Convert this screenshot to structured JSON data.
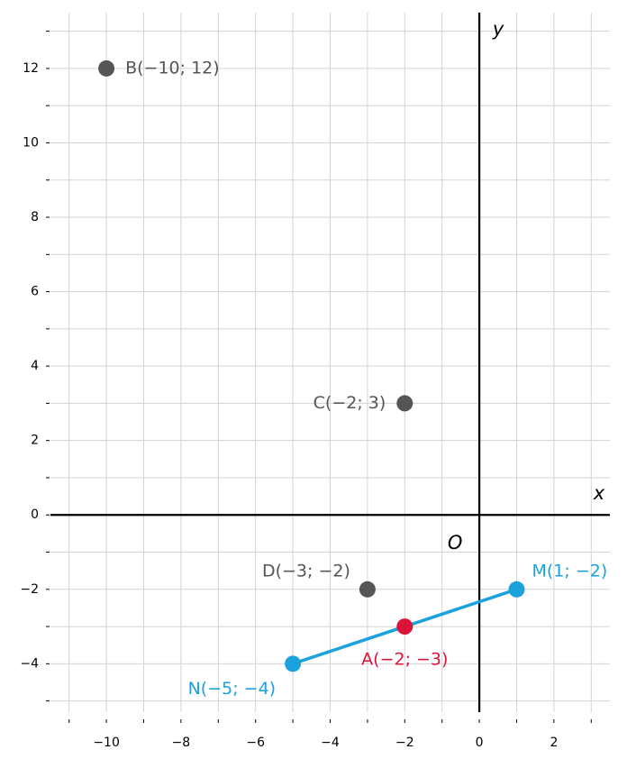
{
  "chart_data": {
    "type": "scatter",
    "x_label": "x",
    "y_label": "y",
    "origin_label": "O",
    "xlim": [
      -11.5,
      3.5
    ],
    "ylim": [
      -5.3,
      13.5
    ],
    "xticks": [
      {
        "value": -10,
        "label": "−10"
      },
      {
        "value": -8,
        "label": "−8"
      },
      {
        "value": -6,
        "label": "−6"
      },
      {
        "value": -4,
        "label": "−4"
      },
      {
        "value": -2,
        "label": "−2"
      },
      0,
      2
    ],
    "yticks": [
      {
        "value": -4,
        "label": "−4"
      },
      {
        "value": -2,
        "label": "−2"
      },
      0,
      2,
      4,
      6,
      8,
      10,
      12
    ],
    "xminorticks": [
      -11,
      -9,
      -7,
      -5,
      -3,
      -1,
      1,
      3
    ],
    "yminorticks": [
      -5,
      -3,
      -1,
      1,
      3,
      5,
      7,
      9,
      11,
      13
    ],
    "grid": true,
    "x": [
      -10,
      -2,
      -3,
      1,
      -5,
      -2
    ],
    "y": [
      12,
      3,
      -2,
      -2,
      -4,
      -3
    ],
    "labels": [
      "B(−10; 12)",
      "C(−2; 3)",
      "D(−3; −2)",
      "M(1; −2)",
      "N(−5; −4)",
      "A(−2; −3)"
    ],
    "colors": [
      "#555555",
      "#555555",
      "#555555",
      "#1ba1dc",
      "#1ba1dc",
      "#dc143c"
    ],
    "segment": {
      "x": [
        -5,
        1
      ],
      "y": [
        -4,
        -2
      ],
      "color": "#1ba1dc"
    }
  }
}
